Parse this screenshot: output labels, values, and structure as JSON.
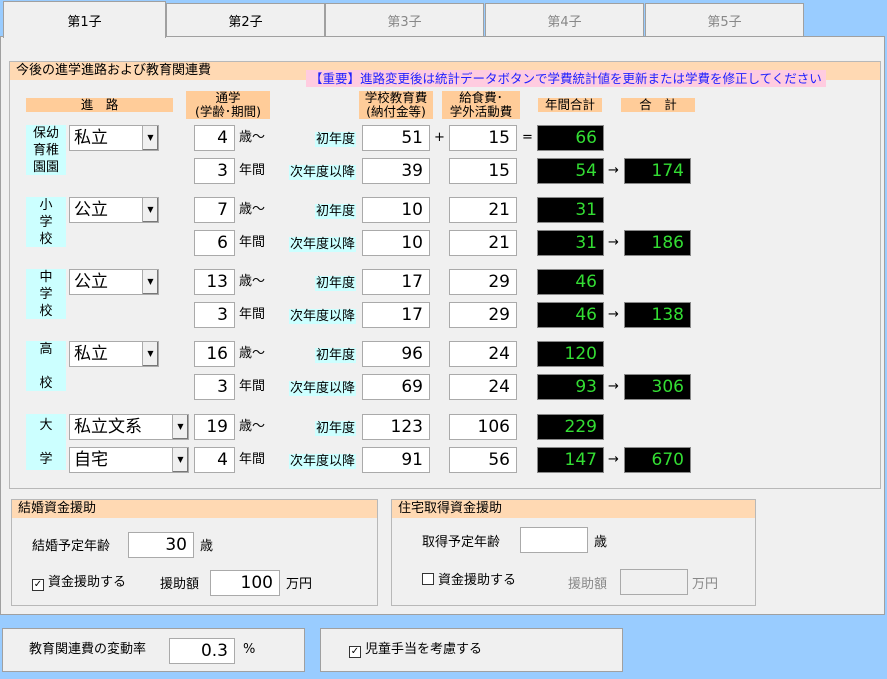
{
  "tabs": [
    {
      "label": "第1子",
      "active": true
    },
    {
      "label": "第2子"
    },
    {
      "label": "第3子",
      "disabled": true
    },
    {
      "label": "第4子",
      "disabled": true
    },
    {
      "label": "第5子",
      "disabled": true
    }
  ],
  "education": {
    "title": "今後の進学進路および教育関連費",
    "notice": "【重要】進路変更後は統計データボタンで学費統計値を更新または学費を修正してください",
    "headers": {
      "route": "進　路",
      "attend": "通学\n(学齢･期間)",
      "school_fee": "学校教育費\n(納付金等)",
      "meal_fee": "給食費･\n学外活動費",
      "annual_total": "年間合計",
      "total": "合　計"
    },
    "labels": {
      "age_suffix": "歳～",
      "years_suffix": "年間",
      "first_year": "初年度",
      "later_years": "次年度以降",
      "plus": "+",
      "equals": "=",
      "arrow": "→"
    },
    "stages": [
      {
        "name": "保幼\n育稚\n園園",
        "type": "私立",
        "start_age": "4",
        "years": "3",
        "first": {
          "school": "51",
          "meal": "15",
          "annual": "66"
        },
        "later": {
          "school": "39",
          "meal": "15",
          "annual": "54"
        },
        "total": "174"
      },
      {
        "name": "小\n学\n校",
        "type": "公立",
        "start_age": "7",
        "years": "6",
        "first": {
          "school": "10",
          "meal": "21",
          "annual": "31"
        },
        "later": {
          "school": "10",
          "meal": "21",
          "annual": "31"
        },
        "total": "186"
      },
      {
        "name": "中\n学\n校",
        "type": "公立",
        "start_age": "13",
        "years": "3",
        "first": {
          "school": "17",
          "meal": "29",
          "annual": "46"
        },
        "later": {
          "school": "17",
          "meal": "29",
          "annual": "46"
        },
        "total": "138"
      },
      {
        "name": "高\n\n校",
        "type": "私立",
        "start_age": "16",
        "years": "3",
        "first": {
          "school": "96",
          "meal": "24",
          "annual": "120"
        },
        "later": {
          "school": "69",
          "meal": "24",
          "annual": "93"
        },
        "total": "306"
      },
      {
        "name": "大\n\n学",
        "type": "私立文系",
        "residence": "自宅",
        "start_age": "19",
        "years": "4",
        "first": {
          "school": "123",
          "meal": "106",
          "annual": "229"
        },
        "later": {
          "school": "91",
          "meal": "56",
          "annual": "147"
        },
        "total": "670"
      }
    ]
  },
  "marriage": {
    "title": "結婚資金援助",
    "age_label": "結婚予定年齢",
    "age": "30",
    "age_unit": "歳",
    "support_label": "資金援助する",
    "support_checked": true,
    "amount_label": "援助額",
    "amount": "100",
    "amount_unit": "万円"
  },
  "housing": {
    "title": "住宅取得資金援助",
    "age_label": "取得予定年齢",
    "age": "",
    "age_unit": "歳",
    "support_label": "資金援助する",
    "support_checked": false,
    "amount_label": "援助額",
    "amount": "",
    "amount_unit": "万円"
  },
  "bottom": {
    "rate_label": "教育関連費の変動率",
    "rate": "0.3",
    "rate_unit": "%",
    "child_allowance_label": "児童手当を考慮する",
    "child_allowance_checked": true
  },
  "colors": {
    "lcd_text": "#33dd33",
    "header": "#ffcc99",
    "stage_label": "#ccffff",
    "notice_text": "#2020ff"
  }
}
